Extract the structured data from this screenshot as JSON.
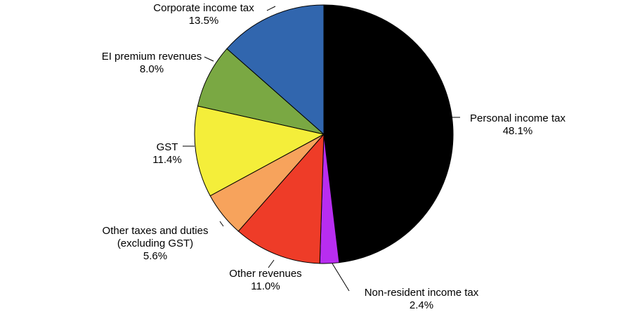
{
  "chart_data": {
    "type": "pie",
    "start_angle_deg": 0,
    "direction": "clockwise",
    "slices": [
      {
        "label": "Personal income tax",
        "value": 48.1,
        "value_label": "48.1%",
        "color": "#000000"
      },
      {
        "label": "Non-resident income tax",
        "value": 2.4,
        "value_label": "2.4%",
        "color": "#b82df0"
      },
      {
        "label": "Other revenues",
        "value": 11.0,
        "value_label": "11.0%",
        "color": "#ee3c28"
      },
      {
        "label": "Other taxes and duties (excluding GST)",
        "label_lines": [
          "Other taxes and duties",
          "(excluding GST)"
        ],
        "value": 5.6,
        "value_label": "5.6%",
        "color": "#f7a35c"
      },
      {
        "label": "GST",
        "value": 11.4,
        "value_label": "11.4%",
        "color": "#f4ee3a"
      },
      {
        "label": "EI premium revenues",
        "value": 8.0,
        "value_label": "8.0%",
        "color": "#7aa843"
      },
      {
        "label": "Corporate income tax",
        "value": 13.5,
        "value_label": "13.5%",
        "color": "#3166ae"
      }
    ]
  }
}
